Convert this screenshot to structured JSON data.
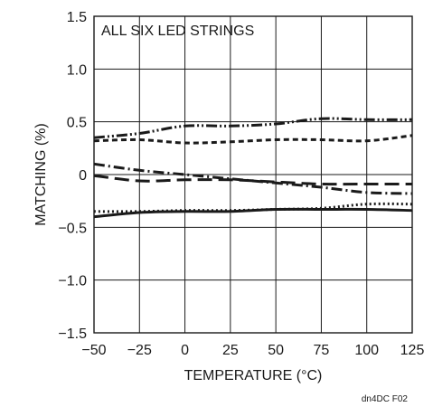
{
  "chart_data": {
    "type": "line",
    "title": "",
    "xlabel": "TEMPERATURE (°C)",
    "ylabel": "MATCHING (%)",
    "xlim": [
      -50,
      125
    ],
    "ylim": [
      -1.5,
      1.5
    ],
    "xticks": [
      -50,
      -25,
      0,
      25,
      50,
      75,
      100,
      125
    ],
    "yticks": [
      -1.5,
      -1.0,
      -0.5,
      0,
      0.5,
      1.0,
      1.5
    ],
    "xtick_labels": [
      "−50",
      "−25",
      "0",
      "25",
      "50",
      "75",
      "100",
      "125"
    ],
    "ytick_labels": [
      "−1.5",
      "−1.0",
      "−0.5",
      "0",
      "0.5",
      "1.0",
      "1.5"
    ],
    "grid": true,
    "annotation": "ALL SIX LED STRINGS",
    "figure_label": "dn4DC F02",
    "series": [
      {
        "style": "dash-dot-dot",
        "x": [
          -50,
          -25,
          0,
          25,
          50,
          75,
          100,
          125
        ],
        "y": [
          0.35,
          0.39,
          0.46,
          0.46,
          0.48,
          0.53,
          0.52,
          0.52
        ]
      },
      {
        "style": "short-dash",
        "x": [
          -50,
          -25,
          0,
          25,
          50,
          75,
          100,
          125
        ],
        "y": [
          0.32,
          0.33,
          0.3,
          0.31,
          0.33,
          0.33,
          0.32,
          0.37
        ]
      },
      {
        "style": "dash-dot",
        "x": [
          -50,
          -25,
          0,
          25,
          50,
          75,
          100,
          125
        ],
        "y": [
          0.1,
          0.04,
          0.0,
          -0.04,
          -0.08,
          -0.12,
          -0.17,
          -0.18
        ]
      },
      {
        "style": "long-dash",
        "x": [
          -50,
          -25,
          0,
          25,
          50,
          75,
          100,
          125
        ],
        "y": [
          -0.01,
          -0.06,
          -0.05,
          -0.05,
          -0.07,
          -0.09,
          -0.09,
          -0.09
        ]
      },
      {
        "style": "dotted",
        "x": [
          -50,
          -25,
          0,
          25,
          50,
          75,
          100,
          125
        ],
        "y": [
          -0.35,
          -0.35,
          -0.34,
          -0.34,
          -0.33,
          -0.32,
          -0.28,
          -0.28
        ]
      },
      {
        "style": "solid",
        "x": [
          -50,
          -25,
          0,
          25,
          50,
          75,
          100,
          125
        ],
        "y": [
          -0.4,
          -0.36,
          -0.35,
          -0.35,
          -0.33,
          -0.33,
          -0.33,
          -0.34
        ]
      }
    ]
  }
}
